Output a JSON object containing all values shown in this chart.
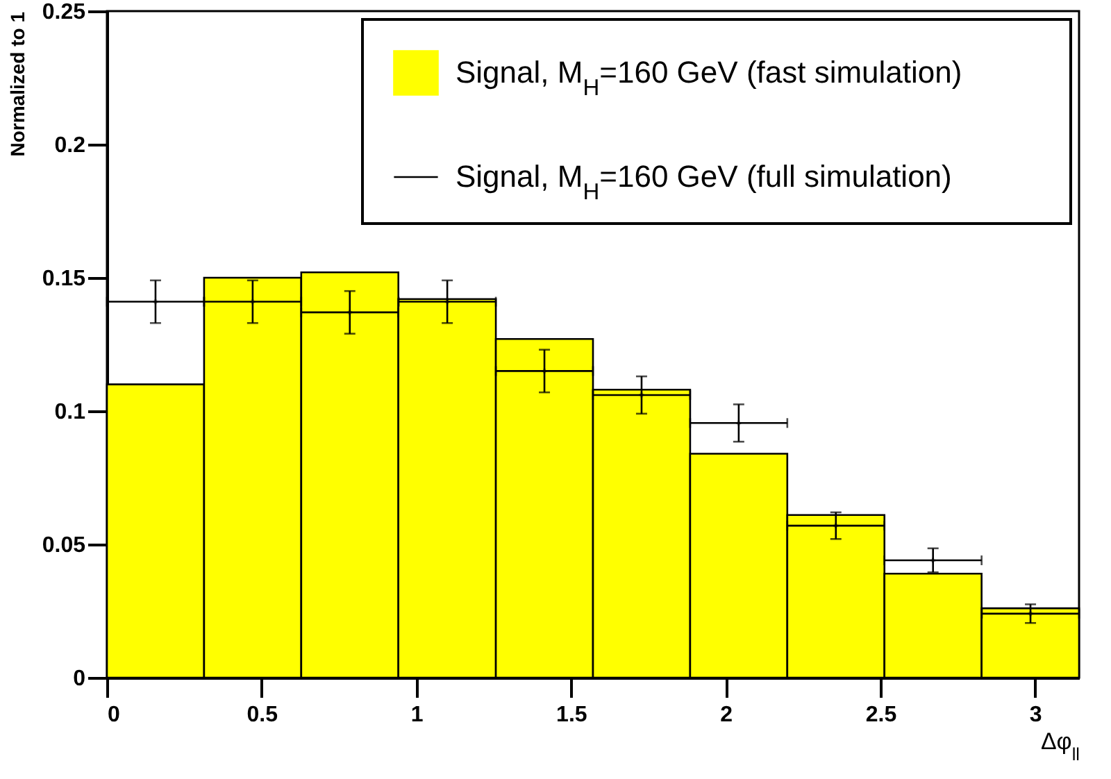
{
  "chart_data": {
    "type": "histogram",
    "xlabel": "Δφ$_{ll}$",
    "ylabel": "Normalized to 1",
    "bins": [
      0,
      0.314,
      0.628,
      0.942,
      1.257,
      1.571,
      1.885,
      2.199,
      2.513,
      2.827,
      3.142
    ],
    "series": [
      {
        "name": "Signal, M$_{H}$=160 GeV (fast simulation)",
        "color": "#ffff00",
        "values": [
          0.11,
          0.15,
          0.152,
          0.142,
          0.127,
          0.108,
          0.084,
          0.061,
          0.039,
          0.026
        ]
      },
      {
        "name": "Signal, M$_{H}$=160 GeV (full simulation)",
        "type": "scatter",
        "color": "#000000",
        "x": [
          0.157,
          0.471,
          0.785,
          1.1,
          1.414,
          1.728,
          2.042,
          2.356,
          2.67,
          2.985
        ],
        "values": [
          0.141,
          0.141,
          0.137,
          0.141,
          0.115,
          0.106,
          0.0955,
          0.057,
          0.044,
          0.024
        ],
        "errors": [
          0.008,
          0.008,
          0.008,
          0.008,
          0.008,
          0.007,
          0.007,
          0.005,
          0.0045,
          0.0035
        ],
        "xerrors": [
          0.157,
          0.157,
          0.157,
          0.157,
          0.157,
          0.157,
          0.157,
          0.157,
          0.157,
          0.157
        ]
      }
    ],
    "xlim": [
      0,
      3.142
    ],
    "ylim": [
      0,
      0.25
    ],
    "xticks": [
      0,
      0.5,
      1,
      1.5,
      2,
      2.5,
      3
    ],
    "yticks": [
      0,
      0.05,
      0.1,
      0.15,
      0.2,
      0.25
    ],
    "legend": "top right",
    "marker": "cross",
    "grid": false
  }
}
